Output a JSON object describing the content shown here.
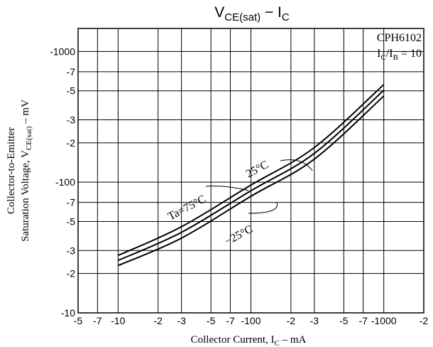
{
  "chart_data": {
    "type": "line",
    "title": [
      "V",
      "CE(sat)",
      " − ",
      "I",
      "C"
    ],
    "x_label": [
      "Collector Current, I",
      "C",
      " – mA"
    ],
    "y_label_line1": "Collector-to-Emitter",
    "y_label_line2": [
      "Saturation Voltage, V",
      "CE(sat)",
      " – mV"
    ],
    "part_number": "CPH6102",
    "condition": [
      "I",
      "C",
      "/I",
      "B",
      " = 10"
    ],
    "log_scale": true,
    "grid": true,
    "xlim": [
      -5,
      -2000
    ],
    "ylim": [
      -10,
      -1500
    ],
    "xticks": [
      -5,
      -7,
      -10,
      {
        "value": -20,
        "label": "-2"
      },
      {
        "value": -30,
        "label": "-3"
      },
      {
        "value": -50,
        "label": "-5"
      },
      {
        "value": -70,
        "label": "-7"
      },
      -100,
      {
        "value": -200,
        "label": "-2"
      },
      {
        "value": -300,
        "label": "-3"
      },
      {
        "value": -500,
        "label": "-5"
      },
      {
        "value": -700,
        "label": "-7"
      },
      -1000,
      {
        "value": -2000,
        "label": "-2"
      }
    ],
    "yticks": [
      -10,
      {
        "value": -20,
        "label": "-2"
      },
      {
        "value": -30,
        "label": "-3"
      },
      {
        "value": -50,
        "label": "-5"
      },
      {
        "value": -70,
        "label": "-7"
      },
      -100,
      {
        "value": -200,
        "label": "-2"
      },
      {
        "value": -300,
        "label": "-3"
      },
      {
        "value": -500,
        "label": "-5"
      },
      {
        "value": -700,
        "label": "-7"
      },
      -1000
    ],
    "x": [
      -10,
      -30,
      -100,
      -300,
      -1000
    ],
    "series": [
      {
        "name": "Ta=75°C",
        "color": "#000000",
        "values": [
          -27.5,
          -45.6,
          -95,
          -184,
          -558
        ]
      },
      {
        "name": "25°C",
        "color": "#000000",
        "values": [
          -25.2,
          -41.3,
          -86,
          -166,
          -505
        ]
      },
      {
        "name": "−25°C",
        "color": "#000000",
        "values": [
          -23,
          -37.3,
          -78,
          -150,
          -456
        ]
      }
    ]
  }
}
